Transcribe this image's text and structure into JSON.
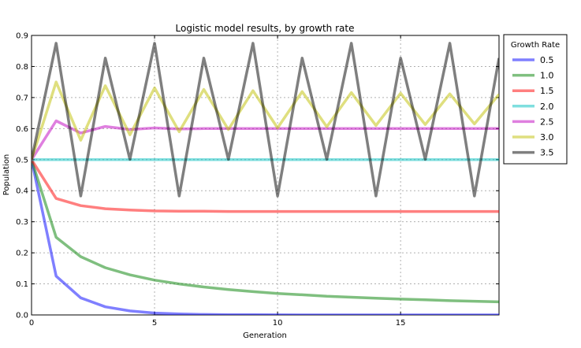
{
  "chart_data": {
    "type": "line",
    "title": "Logistic model results, by growth rate",
    "xlabel": "Generation",
    "ylabel": "Population",
    "xlim": [
      0,
      19
    ],
    "ylim": [
      0,
      0.9
    ],
    "xticks": [
      "0",
      "5",
      "10",
      "15"
    ],
    "yticks": [
      "0.0",
      "0.1",
      "0.2",
      "0.3",
      "0.4",
      "0.5",
      "0.6",
      "0.7",
      "0.8",
      "0.9"
    ],
    "grid": true,
    "legend": {
      "title": "Growth Rate",
      "position": "outside-right"
    },
    "x": [
      0,
      1,
      2,
      3,
      4,
      5,
      6,
      7,
      8,
      9,
      10,
      11,
      12,
      13,
      14,
      15,
      16,
      17,
      18,
      19
    ],
    "series": [
      {
        "name": "0.5",
        "color": "#0000ff",
        "values": [
          0.5,
          0.125,
          0.055,
          0.026,
          0.013,
          0.006,
          0.003,
          0.0015,
          0.0008,
          0.0004,
          0.0002,
          0.0001,
          0.0001,
          0,
          0,
          0,
          0,
          0,
          0,
          0
        ]
      },
      {
        "name": "1.0",
        "color": "#008000",
        "values": [
          0.5,
          0.25,
          0.1875,
          0.152,
          0.129,
          0.112,
          0.1,
          0.09,
          0.082,
          0.075,
          0.069,
          0.065,
          0.06,
          0.057,
          0.054,
          0.051,
          0.049,
          0.046,
          0.044,
          0.042
        ]
      },
      {
        "name": "1.5",
        "color": "#ff0000",
        "values": [
          0.5,
          0.375,
          0.352,
          0.342,
          0.338,
          0.335,
          0.334,
          0.334,
          0.333,
          0.333,
          0.333,
          0.333,
          0.333,
          0.333,
          0.333,
          0.333,
          0.333,
          0.333,
          0.333,
          0.333
        ]
      },
      {
        "name": "2.0",
        "color": "#00bfbf",
        "values": [
          0.5,
          0.5,
          0.5,
          0.5,
          0.5,
          0.5,
          0.5,
          0.5,
          0.5,
          0.5,
          0.5,
          0.5,
          0.5,
          0.5,
          0.5,
          0.5,
          0.5,
          0.5,
          0.5,
          0.5
        ]
      },
      {
        "name": "2.5",
        "color": "#bf00bf",
        "values": [
          0.5,
          0.625,
          0.586,
          0.607,
          0.597,
          0.602,
          0.599,
          0.6,
          0.6,
          0.6,
          0.6,
          0.6,
          0.6,
          0.6,
          0.6,
          0.6,
          0.6,
          0.6,
          0.6,
          0.6
        ]
      },
      {
        "name": "3.0",
        "color": "#bfbf00",
        "values": [
          0.5,
          0.75,
          0.5625,
          0.738,
          0.58,
          0.731,
          0.59,
          0.726,
          0.597,
          0.722,
          0.602,
          0.719,
          0.606,
          0.716,
          0.61,
          0.714,
          0.613,
          0.712,
          0.615,
          0.71
        ]
      },
      {
        "name": "3.5",
        "color": "#000000",
        "values": [
          0.5,
          0.875,
          0.383,
          0.827,
          0.501,
          0.875,
          0.383,
          0.827,
          0.501,
          0.875,
          0.383,
          0.827,
          0.501,
          0.875,
          0.383,
          0.827,
          0.501,
          0.875,
          0.383,
          0.827
        ]
      }
    ]
  }
}
